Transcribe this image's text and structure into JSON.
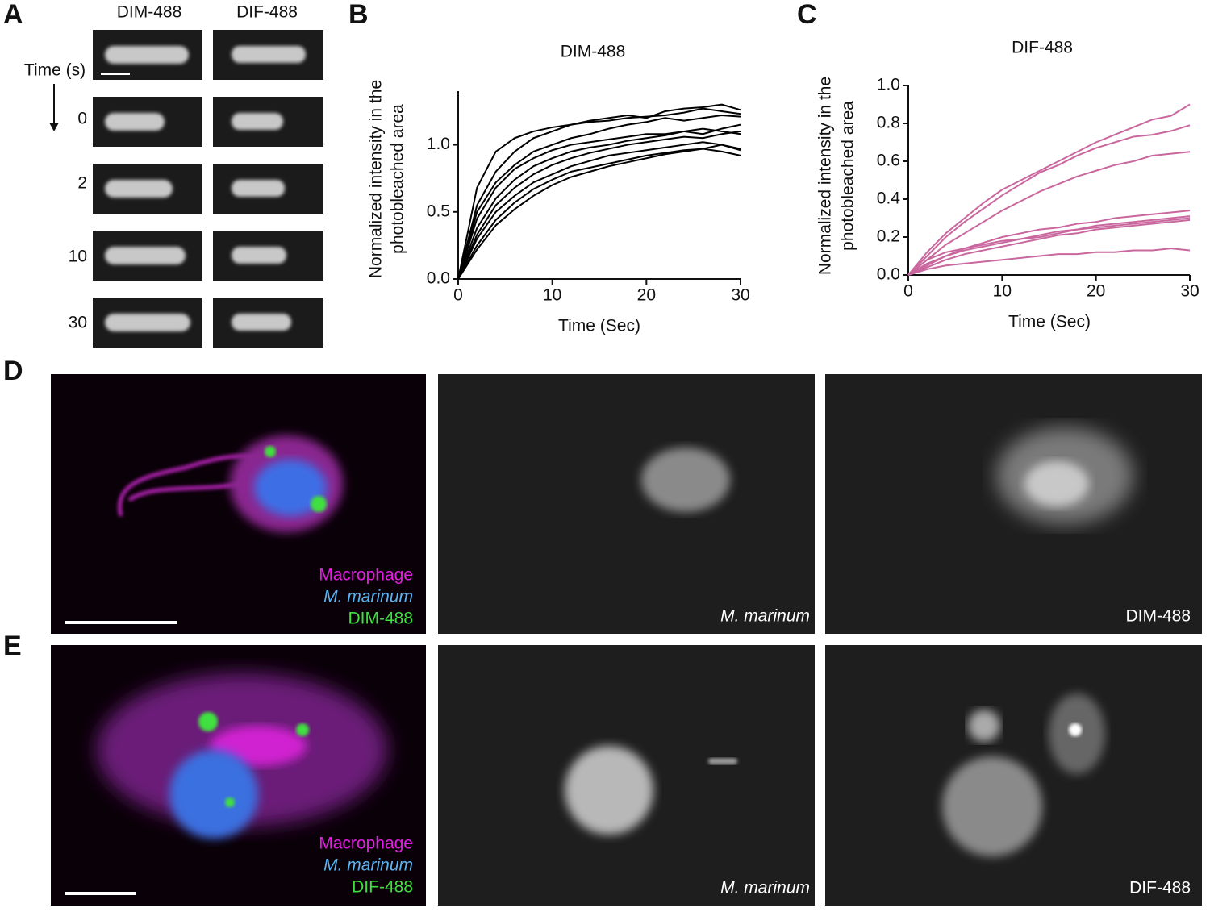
{
  "panel_letters": [
    "A",
    "B",
    "C",
    "D",
    "E"
  ],
  "panel_a": {
    "columns": [
      "DIM-488",
      "DIF-488"
    ],
    "time_label": "Time (s)",
    "rows": [
      "0",
      "2",
      "10",
      "30"
    ]
  },
  "panel_d": {
    "legend": [
      "Macrophage",
      "M. marinum",
      "DIM-488"
    ],
    "captions": [
      "M. marinum",
      "DIM-488"
    ]
  },
  "panel_e": {
    "legend": [
      "Macrophage",
      "M. marinum",
      "DIF-488"
    ],
    "captions": [
      "M. marinum",
      "DIF-488"
    ]
  },
  "chart_data": [
    {
      "type": "line",
      "title": "DIM-488",
      "xlabel": "Time (Sec)",
      "ylabel": [
        "Normalized intensity in the",
        "photobleached area"
      ],
      "x": [
        0,
        2,
        4,
        6,
        8,
        10,
        12,
        14,
        16,
        18,
        20,
        22,
        24,
        26,
        28,
        30
      ],
      "xlim": [
        0,
        30
      ],
      "xticks": [
        0,
        10,
        20,
        30
      ],
      "ylim": [
        0,
        1.4
      ],
      "yticks": [
        {
          "value": 0,
          "label": "0.0"
        },
        {
          "value": 0.5,
          "label": "0.5"
        },
        {
          "value": 1,
          "label": "1.0"
        }
      ],
      "series": [
        {
          "color": "#000000",
          "values": [
            0,
            0.68,
            0.95,
            1.05,
            1.1,
            1.13,
            1.15,
            1.17,
            1.18,
            1.2,
            1.21,
            1.22,
            1.24,
            1.27,
            1.25,
            1.23
          ]
        },
        {
          "color": "#000000",
          "values": [
            0,
            0.55,
            0.8,
            0.95,
            1.05,
            1.1,
            1.15,
            1.18,
            1.2,
            1.22,
            1.2,
            1.25,
            1.27,
            1.28,
            1.3,
            1.26
          ]
        },
        {
          "color": "#000000",
          "values": [
            0,
            0.5,
            0.72,
            0.85,
            0.95,
            1.0,
            1.05,
            1.08,
            1.12,
            1.15,
            1.17,
            1.2,
            1.18,
            1.2,
            1.22,
            1.21
          ]
        },
        {
          "color": "#000000",
          "values": [
            0,
            0.45,
            0.68,
            0.82,
            0.9,
            0.96,
            1.0,
            1.02,
            1.04,
            1.06,
            1.08,
            1.08,
            1.1,
            1.12,
            1.1,
            1.08
          ]
        },
        {
          "color": "#000000",
          "values": [
            0,
            0.38,
            0.6,
            0.74,
            0.84,
            0.9,
            0.95,
            0.98,
            1.0,
            1.03,
            1.05,
            1.07,
            1.1,
            1.08,
            1.12,
            1.15
          ]
        },
        {
          "color": "#000000",
          "values": [
            0,
            0.33,
            0.55,
            0.68,
            0.78,
            0.85,
            0.9,
            0.94,
            0.97,
            1.0,
            1.02,
            1.04,
            1.06,
            1.05,
            1.08,
            1.1
          ]
        },
        {
          "color": "#000000",
          "values": [
            0,
            0.3,
            0.5,
            0.62,
            0.72,
            0.78,
            0.84,
            0.88,
            0.92,
            0.94,
            0.96,
            0.98,
            1.0,
            1.02,
            1.0,
            0.97
          ]
        },
        {
          "color": "#000000",
          "values": [
            0,
            0.25,
            0.44,
            0.57,
            0.67,
            0.74,
            0.8,
            0.83,
            0.86,
            0.89,
            0.92,
            0.94,
            0.96,
            0.97,
            0.95,
            0.92
          ]
        },
        {
          "color": "#000000",
          "values": [
            0,
            0.22,
            0.4,
            0.52,
            0.62,
            0.7,
            0.76,
            0.8,
            0.84,
            0.87,
            0.9,
            0.93,
            0.95,
            0.97,
            1.0,
            0.96
          ]
        }
      ]
    },
    {
      "type": "line",
      "title": "DIF-488",
      "xlabel": "Time (Sec)",
      "ylabel": [
        "Normalized intensity in the",
        "photobleached area"
      ],
      "x": [
        0,
        2,
        4,
        6,
        8,
        10,
        12,
        14,
        16,
        18,
        20,
        22,
        24,
        26,
        28,
        30
      ],
      "xlim": [
        0,
        30
      ],
      "xticks": [
        0,
        10,
        20,
        30
      ],
      "ylim": [
        0,
        1.0
      ],
      "yticks": [
        {
          "value": 0,
          "label": "0.0"
        },
        {
          "value": 0.2,
          "label": "0.2"
        },
        {
          "value": 0.4,
          "label": "0.4"
        },
        {
          "value": 0.6,
          "label": "0.6"
        },
        {
          "value": 0.8,
          "label": "0.8"
        },
        {
          "value": 1,
          "label": "1.0"
        }
      ],
      "series": [
        {
          "color": "#c9679e",
          "values": [
            0,
            0.12,
            0.22,
            0.3,
            0.38,
            0.45,
            0.5,
            0.55,
            0.6,
            0.65,
            0.7,
            0.74,
            0.78,
            0.82,
            0.84,
            0.9
          ]
        },
        {
          "color": "#c9679e",
          "values": [
            0,
            0.1,
            0.2,
            0.28,
            0.35,
            0.42,
            0.48,
            0.54,
            0.58,
            0.63,
            0.67,
            0.7,
            0.73,
            0.74,
            0.76,
            0.79
          ]
        },
        {
          "color": "#c9679e",
          "values": [
            0,
            0.08,
            0.16,
            0.22,
            0.28,
            0.34,
            0.39,
            0.44,
            0.48,
            0.52,
            0.55,
            0.58,
            0.6,
            0.63,
            0.64,
            0.65
          ]
        },
        {
          "color": "#c9679e",
          "values": [
            0,
            0.05,
            0.1,
            0.14,
            0.17,
            0.2,
            0.22,
            0.24,
            0.25,
            0.27,
            0.28,
            0.3,
            0.31,
            0.32,
            0.33,
            0.34
          ]
        },
        {
          "color": "#c9679e",
          "values": [
            0,
            0.06,
            0.1,
            0.13,
            0.15,
            0.17,
            0.19,
            0.21,
            0.23,
            0.24,
            0.26,
            0.27,
            0.28,
            0.29,
            0.3,
            0.31
          ]
        },
        {
          "color": "#c9679e",
          "values": [
            0,
            0.08,
            0.12,
            0.14,
            0.16,
            0.18,
            0.19,
            0.2,
            0.22,
            0.24,
            0.25,
            0.26,
            0.27,
            0.28,
            0.29,
            0.3
          ]
        },
        {
          "color": "#c9679e",
          "values": [
            0,
            0.04,
            0.08,
            0.11,
            0.13,
            0.15,
            0.17,
            0.19,
            0.21,
            0.22,
            0.24,
            0.25,
            0.26,
            0.27,
            0.28,
            0.29
          ]
        },
        {
          "color": "#c9679e",
          "values": [
            0,
            0.03,
            0.05,
            0.06,
            0.07,
            0.08,
            0.09,
            0.1,
            0.11,
            0.11,
            0.12,
            0.12,
            0.13,
            0.13,
            0.14,
            0.13
          ]
        }
      ]
    }
  ]
}
